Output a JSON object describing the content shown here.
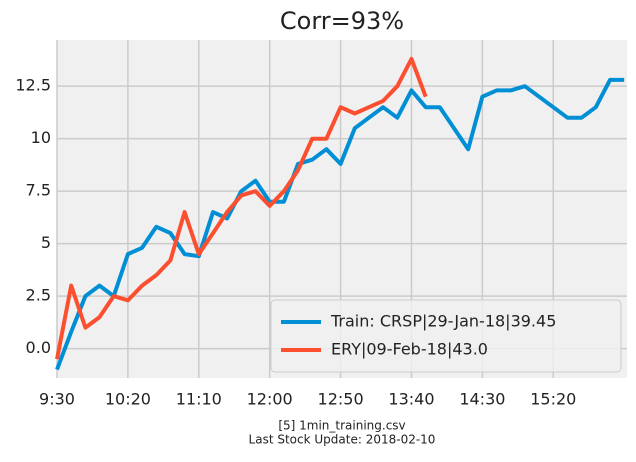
{
  "chart_data": {
    "type": "line",
    "title": "Corr=93%",
    "footer": [
      "[5] 1min_training.csv",
      "Last Stock Update: 2018-02-10"
    ],
    "x": [
      0,
      10,
      20,
      30,
      40,
      50,
      60,
      70,
      80,
      90,
      100,
      110,
      120,
      130,
      140,
      150,
      160,
      170,
      180,
      190,
      200,
      210,
      220,
      230,
      240,
      250,
      260,
      270,
      280,
      290,
      300,
      310,
      320,
      330,
      340,
      350,
      360,
      370,
      380,
      390,
      400
    ],
    "series": [
      {
        "name": "Train: CRSP|29-Jan-18|39.45",
        "color": "#008fd5",
        "values": [
          -1.0,
          0.8,
          2.5,
          3.0,
          2.5,
          4.5,
          4.8,
          5.8,
          5.5,
          4.5,
          4.4,
          6.5,
          6.2,
          7.5,
          8.0,
          7.0,
          7.0,
          8.8,
          9.0,
          9.5,
          8.8,
          10.5,
          11.0,
          11.5,
          11.0,
          12.3,
          11.5,
          11.5,
          10.5,
          9.5,
          12.0,
          12.3,
          12.3,
          12.5,
          12.0,
          11.5,
          11.0,
          11.0,
          11.5,
          12.8,
          12.8
        ]
      },
      {
        "name": "ERY|09-Feb-18|43.0",
        "color": "#fc4f30",
        "values": [
          -0.5,
          3.0,
          1.0,
          1.5,
          2.5,
          2.3,
          3.0,
          3.5,
          4.2,
          6.5,
          4.5,
          5.5,
          6.5,
          7.3,
          7.5,
          6.8,
          7.5,
          8.5,
          10.0,
          10.0,
          11.5,
          11.2,
          11.5,
          11.8,
          12.5,
          13.8,
          12.0,
          null,
          null,
          null,
          null,
          null,
          null,
          null,
          null,
          null,
          null,
          null,
          null,
          null,
          null
        ]
      }
    ],
    "xlim": [
      0,
      402
    ],
    "xticks": [
      {
        "value": 0,
        "label": "9:30"
      },
      {
        "value": 50,
        "label": "10:20"
      },
      {
        "value": 100,
        "label": "11:10"
      },
      {
        "value": 150,
        "label": "12:00"
      },
      {
        "value": 200,
        "label": "12:50"
      },
      {
        "value": 250,
        "label": "13:40"
      },
      {
        "value": 300,
        "label": "14:30"
      },
      {
        "value": 350,
        "label": "15:20"
      }
    ],
    "ylim": [
      -1.4,
      14.7
    ],
    "yticks": [
      {
        "value": 0,
        "label": "0.0"
      },
      2.5,
      5,
      7.5,
      10,
      12.5
    ],
    "grid": true,
    "legend": "lower right"
  }
}
